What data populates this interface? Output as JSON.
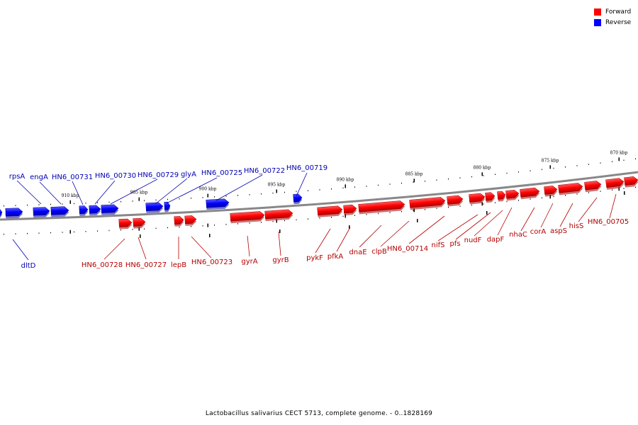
{
  "legend": {
    "forward_label": "Forward",
    "reverse_label": "Reverse",
    "forward_color": "#ff0000",
    "reverse_color": "#0000ff"
  },
  "caption": "Lactobacillus salivarius CECT 5713, complete genome. - 0..1828169",
  "tick_labels": [
    "870 kbp",
    "875 kbp",
    "880 kbp",
    "885 kbp",
    "890 kbp",
    "895 kbp",
    "900 kbp",
    "905 kbp",
    "910 kbp"
  ],
  "reverse_labels": [
    "rpsA",
    "engA",
    "HN6_00731",
    "HN6_00730",
    "HN6_00729",
    "glyA",
    "HN6_00725",
    "HN6_00722",
    "HN6_00719",
    "dltD"
  ],
  "forward_labels": [
    "HN6_00728",
    "HN6_00727",
    "lepB",
    "HN6_00723",
    "gyrA",
    "gyrB",
    "pykF",
    "pfkA",
    "dnaE",
    "clpB",
    "HN6_00714",
    "nifS",
    "pfs",
    "nudF",
    "dapF",
    "nhaC",
    "corA",
    "aspS",
    "hisS",
    "HN6_00705"
  ]
}
